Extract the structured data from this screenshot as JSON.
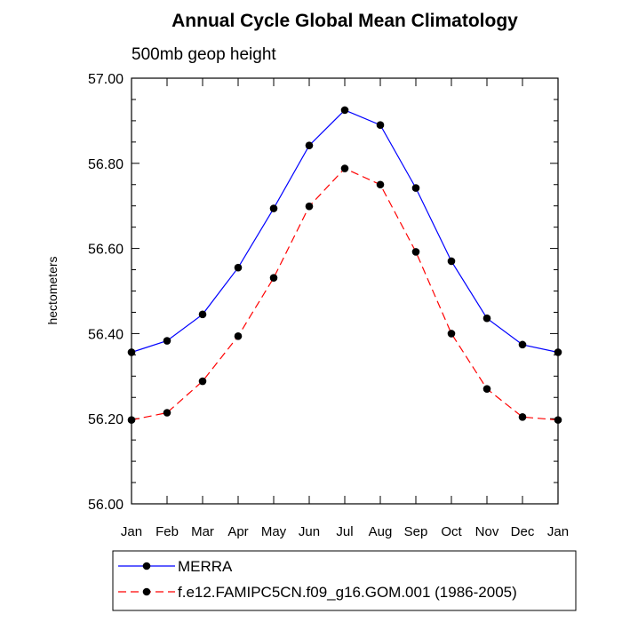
{
  "chart_data": {
    "type": "line",
    "title": "Annual Cycle Global Mean Climatology",
    "subtitle": "500mb geop height",
    "xlabel": "",
    "ylabel": "hectometers",
    "categories": [
      "Jan",
      "Feb",
      "Mar",
      "Apr",
      "May",
      "Jun",
      "Jul",
      "Aug",
      "Sep",
      "Oct",
      "Nov",
      "Dec",
      "Jan"
    ],
    "ylim": [
      56.0,
      57.0
    ],
    "yticks": [
      "56.00",
      "56.20",
      "56.40",
      "56.60",
      "56.80",
      "57.00"
    ],
    "legend_position": "bottom",
    "series": [
      {
        "name": "MERRA",
        "color": "#0000ff",
        "dash": "solid",
        "marker": "circle",
        "values": [
          56.356,
          56.383,
          56.445,
          56.555,
          56.694,
          56.842,
          56.925,
          56.89,
          56.742,
          56.57,
          56.436,
          56.374,
          56.356
        ]
      },
      {
        "name": "f.e12.FAMIPC5CN.f09_g16.GOM.001 (1986-2005)",
        "color": "#ff0000",
        "dash": "dashed",
        "marker": "circle",
        "values": [
          56.197,
          56.214,
          56.288,
          56.394,
          56.531,
          56.699,
          56.788,
          56.75,
          56.592,
          56.4,
          56.27,
          56.204,
          56.197
        ]
      }
    ]
  }
}
